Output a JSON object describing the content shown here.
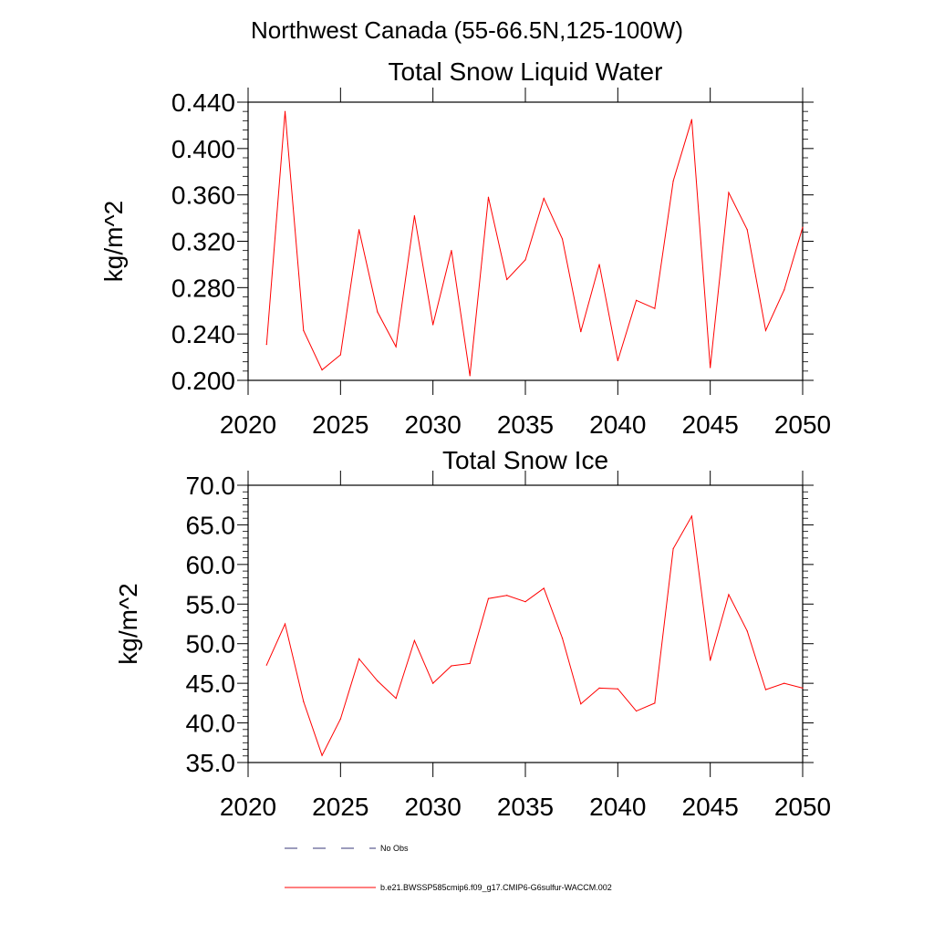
{
  "figure_title": "Northwest Canada (55-66.5N,125-100W)",
  "chart_data": [
    {
      "type": "line",
      "title": "Total Snow Liquid Water",
      "xlabel": "",
      "ylabel": "kg/m^2",
      "xlim": [
        2020,
        2050
      ],
      "ylim": [
        0.2,
        0.44
      ],
      "xticks": [
        "2020",
        "2025",
        "2030",
        "2035",
        "2040",
        "2045",
        "2050"
      ],
      "yticks": [
        "0.200",
        "0.240",
        "0.280",
        "0.320",
        "0.360",
        "0.400",
        "0.440"
      ],
      "x": [
        2021,
        2022,
        2023,
        2024,
        2025,
        2026,
        2027,
        2028,
        2029,
        2030,
        2031,
        2032,
        2033,
        2034,
        2035,
        2036,
        2037,
        2038,
        2039,
        2040,
        2041,
        2042,
        2043,
        2044,
        2045,
        2046,
        2047,
        2048,
        2049,
        2050
      ],
      "series": [
        {
          "name": "b.e21.BWSSP585cmip6.f09_g17.CMIP6-G6sulfur-WACCM.002",
          "color": "#ff0000",
          "values": [
            0.231,
            0.432,
            0.243,
            0.209,
            0.222,
            0.33,
            0.259,
            0.229,
            0.342,
            0.248,
            0.312,
            0.204,
            0.358,
            0.287,
            0.304,
            0.357,
            0.322,
            0.242,
            0.3,
            0.217,
            0.269,
            0.262,
            0.372,
            0.425,
            0.211,
            0.362,
            0.33,
            0.243,
            0.278,
            0.332
          ]
        }
      ],
      "grid": false
    },
    {
      "type": "line",
      "title": "Total Snow Ice",
      "xlabel": "",
      "ylabel": "kg/m^2",
      "xlim": [
        2020,
        2050
      ],
      "ylim": [
        35,
        70
      ],
      "xticks": [
        "2020",
        "2025",
        "2030",
        "2035",
        "2040",
        "2045",
        "2050"
      ],
      "yticks": [
        "35.0",
        "40.0",
        "45.0",
        "50.0",
        "55.0",
        "60.0",
        "65.0",
        "70.0"
      ],
      "x": [
        2021,
        2022,
        2023,
        2024,
        2025,
        2026,
        2027,
        2028,
        2029,
        2030,
        2031,
        2032,
        2033,
        2034,
        2035,
        2036,
        2037,
        2038,
        2039,
        2040,
        2041,
        2042,
        2043,
        2044,
        2045,
        2046,
        2047,
        2048,
        2049,
        2050
      ],
      "series": [
        {
          "name": "b.e21.BWSSP585cmip6.f09_g17.CMIP6-G6sulfur-WACCM.002",
          "color": "#ff0000",
          "values": [
            47.3,
            52.5,
            42.7,
            35.9,
            40.5,
            48.1,
            45.3,
            43.1,
            50.4,
            45.0,
            47.2,
            47.5,
            55.7,
            56.1,
            55.3,
            57.0,
            50.7,
            42.4,
            44.4,
            44.3,
            41.5,
            42.5,
            62.0,
            66.1,
            47.9,
            56.2,
            51.6,
            44.2,
            45.0,
            44.4
          ]
        }
      ],
      "grid": false
    }
  ],
  "legend": {
    "placement": "bottom",
    "entries": [
      {
        "label": "No Obs",
        "style": "dashed",
        "color": "#3a3a7a"
      },
      {
        "label": "b.e21.BWSSP585cmip6.f09_g17.CMIP6-G6sulfur-WACCM.002",
        "style": "solid",
        "color": "#ff0000"
      }
    ]
  }
}
